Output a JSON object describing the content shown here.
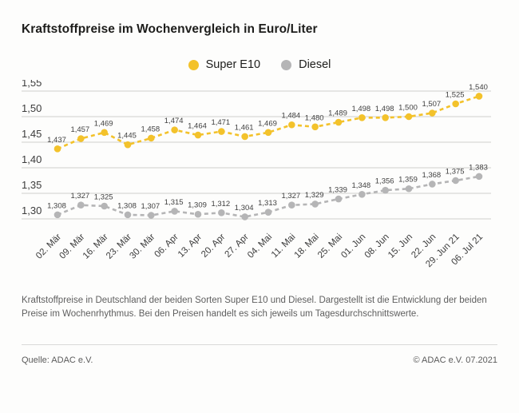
{
  "title": "Kraftstoffpreise im Wochenvergleich in Euro/Liter",
  "legend": {
    "items": [
      {
        "label": "Super E10",
        "color": "#F3C22B"
      },
      {
        "label": "Diesel",
        "color": "#B5B5B6"
      }
    ]
  },
  "chart_data": {
    "type": "line",
    "title": "Kraftstoffpreise im Wochenvergleich in Euro/Liter",
    "categories": [
      "02. Mär",
      "09. Mär",
      "16. Mär",
      "23. Mär",
      "30. Mär",
      "06. Apr",
      "13. Apr",
      "20. Apr",
      "27. Apr",
      "04. Mai",
      "11. Mai",
      "18. Mai",
      "25. Mai",
      "01. Jun",
      "08. Jun",
      "15. Jun",
      "22. Jun",
      "29. Jun 21",
      "06. Jul 21"
    ],
    "series": [
      {
        "name": "Super E10",
        "color": "#F3C22B",
        "values": [
          1.437,
          1.457,
          1.469,
          1.445,
          1.458,
          1.474,
          1.464,
          1.471,
          1.461,
          1.469,
          1.484,
          1.48,
          1.489,
          1.498,
          1.498,
          1.5,
          1.507,
          1.525,
          1.54
        ]
      },
      {
        "name": "Diesel",
        "color": "#B5B5B6",
        "values": [
          1.308,
          1.327,
          1.325,
          1.308,
          1.307,
          1.315,
          1.309,
          1.312,
          1.304,
          1.313,
          1.327,
          1.329,
          1.339,
          1.348,
          1.356,
          1.359,
          1.368,
          1.375,
          1.383
        ]
      }
    ],
    "xlabel": "",
    "ylabel": "Euro/Liter",
    "ylim": [
      1.3,
      1.55
    ],
    "y_ticks": [
      {
        "label": "1,55",
        "value": 1.55
      },
      {
        "label": "1,50",
        "value": 1.5
      },
      {
        "label": "1,45",
        "value": 1.45
      },
      {
        "label": "1,40",
        "value": 1.4
      },
      {
        "label": "1,35",
        "value": 1.35
      },
      {
        "label": "1,30",
        "value": 1.3
      }
    ],
    "grid": true,
    "legend_position": "top-center",
    "line_style": "dashed",
    "point_labels": true,
    "decimal_separator": ",",
    "colors": {
      "grid": "#cfcfcd",
      "point_label": "#3f3f3f",
      "tick_label": "#3c3c3c"
    }
  },
  "caption": "Kraftstoffpreise in Deutschland der beiden Sorten Super E10 und Diesel. Dargestellt ist die Entwicklung der beiden Preise im Wochenrhythmus. Bei den Preisen handelt es sich jeweils um Tagesdurchschnittswerte.",
  "footer": {
    "source": "Quelle: ADAC e.V.",
    "copyright": "© ADAC e.V. 07.2021"
  }
}
